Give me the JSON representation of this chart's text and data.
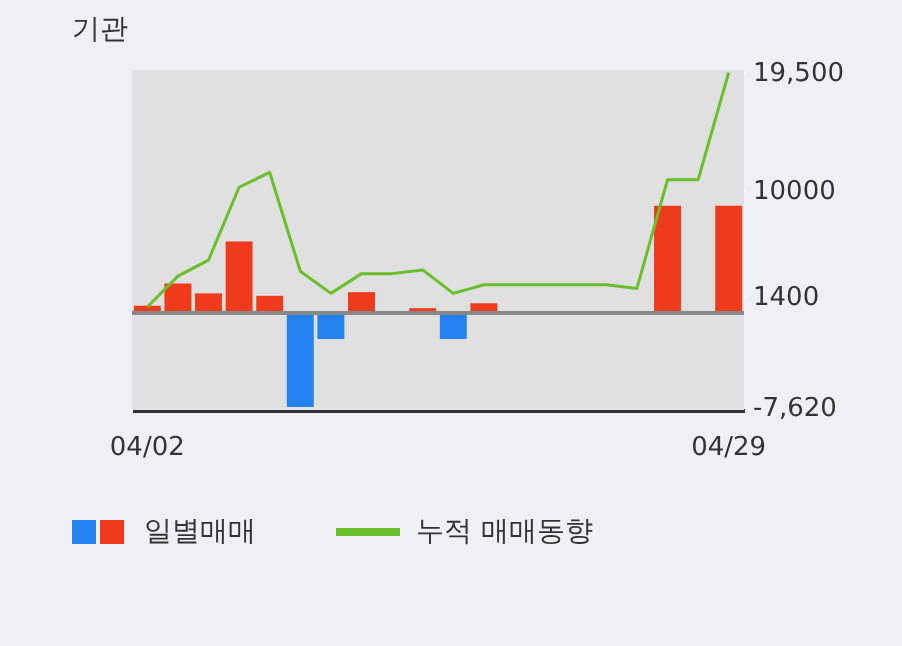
{
  "chart_data": {
    "type": "bar",
    "title": "기관",
    "categories": [
      "04/02",
      null,
      null,
      null,
      null,
      null,
      null,
      null,
      null,
      null,
      null,
      null,
      null,
      null,
      null,
      null,
      null,
      null,
      null,
      "04/29"
    ],
    "series": [
      {
        "name": "일별매매",
        "colors": [
          "#f03a1c",
          "#f03a1c",
          "#f03a1c",
          "#f03a1c",
          "#f03a1c",
          "#2382f0",
          "#2382f0",
          "#f03a1c",
          "#f03a1c",
          "#f03a1c",
          "#2382f0",
          "#f03a1c",
          "#f03a1c",
          "#f03a1c",
          "#f03a1c",
          "#f03a1c",
          "#f03a1c",
          "#f03a1c",
          "#f03a1c",
          "#f03a1c"
        ],
        "values": [
          600,
          2400,
          1600,
          5800,
          1400,
          -7600,
          -2100,
          1700,
          0,
          400,
          -2100,
          800,
          0,
          0,
          0,
          0,
          0,
          8700,
          0,
          8700
        ]
      },
      {
        "name": "누적 매매동향",
        "type": "line",
        "color": "#6abf2a",
        "values": [
          500,
          3000,
          4300,
          10200,
          11400,
          3400,
          1600,
          3200,
          3200,
          3500,
          1600,
          2300,
          2300,
          2300,
          2300,
          2300,
          2000,
          10800,
          10800,
          19500
        ]
      }
    ],
    "ylim": [
      -7850,
      19700
    ],
    "yticks": [
      {
        "value": 19500,
        "label": "19,500"
      },
      10000,
      1400,
      {
        "value": -7620,
        "label": "-7,620"
      }
    ],
    "grid": true,
    "legend": "bottom",
    "ref_lines": [
      {
        "axis": "y",
        "value": 0,
        "color": "#888888"
      }
    ]
  }
}
